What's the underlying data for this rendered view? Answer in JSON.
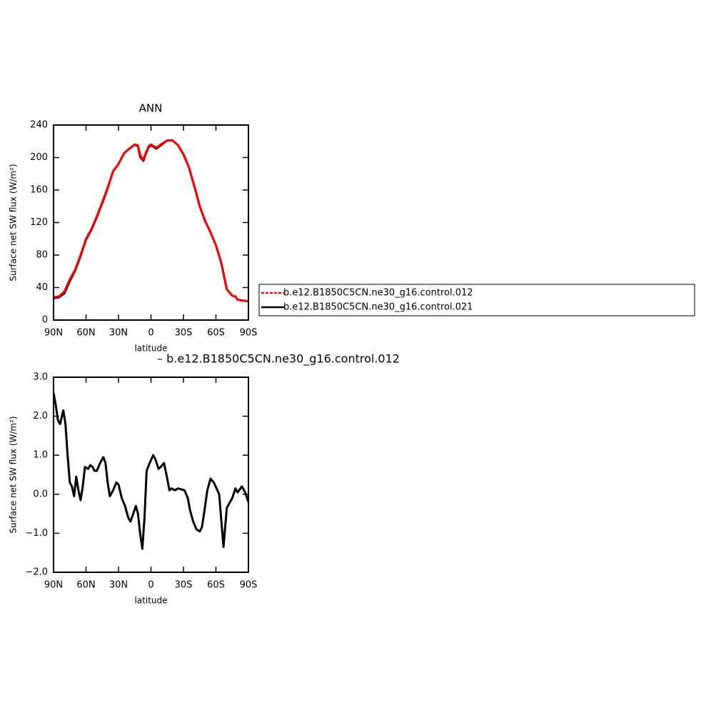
{
  "chart_data": [
    {
      "type": "line",
      "title": "ANN",
      "xlabel": "latitude",
      "ylabel": "Surface net SW flux (W/m²)",
      "x": [
        90,
        85,
        80,
        75,
        70,
        65,
        60,
        55,
        50,
        45,
        40,
        35,
        30,
        25,
        20,
        15,
        12,
        10,
        7,
        5,
        2,
        0,
        -5,
        -10,
        -15,
        -20,
        -25,
        -30,
        -35,
        -40,
        -45,
        -50,
        -55,
        -60,
        -65,
        -70,
        -75,
        -78,
        -80,
        -85,
        -90
      ],
      "series": [
        {
          "name": "b.e12.B1850C5CN.ne30_g16.control.012",
          "color": "#ff0000",
          "dashed": true,
          "values": [
            28,
            29,
            35,
            50,
            62,
            80,
            100,
            112,
            128,
            145,
            163,
            183,
            192,
            205,
            211,
            216,
            215,
            203,
            197,
            205,
            214,
            216,
            212,
            217,
            221,
            221,
            215,
            204,
            188,
            165,
            140,
            122,
            108,
            92,
            70,
            38,
            30,
            29,
            25,
            24,
            23
          ]
        },
        {
          "name": "b.e12.B1850C5CN.ne30_g16.control.021",
          "color": "#000000",
          "dashed": false,
          "values": [
            27,
            28,
            33,
            48,
            61,
            79,
            99,
            111,
            127,
            144,
            162,
            183,
            192,
            205,
            211,
            216,
            214,
            201,
            196,
            204,
            213,
            215,
            211,
            216,
            221,
            221,
            215,
            204,
            188,
            165,
            140,
            122,
            108,
            92,
            70,
            38,
            30,
            29,
            25,
            24,
            23
          ]
        }
      ],
      "xlim": [
        90,
        -90
      ],
      "xticks": [
        {
          "value": 90,
          "label": "90N"
        },
        {
          "value": 60,
          "label": "60N"
        },
        {
          "value": 30,
          "label": "30N"
        },
        0,
        {
          "value": -30,
          "label": "30S"
        },
        {
          "value": -60,
          "label": "60S"
        },
        {
          "value": -90,
          "label": "90S"
        }
      ],
      "ylim": [
        0,
        240
      ],
      "yticks": [
        0,
        40,
        80,
        120,
        160,
        200,
        240
      ],
      "legend": "right"
    },
    {
      "type": "line",
      "title": "– b.e12.B1850C5CN.ne30_g16.control.012",
      "xlabel": "latitude",
      "ylabel": "Surface net SW flux (W/m²)",
      "x": [
        90,
        88,
        86,
        84,
        81,
        79,
        77,
        75,
        73,
        71,
        69,
        67,
        65,
        63,
        61,
        58,
        56,
        54,
        52,
        50,
        47,
        44,
        42,
        40,
        38,
        35,
        32,
        30,
        27,
        24,
        21,
        19,
        17,
        14,
        12,
        10,
        8,
        6,
        4,
        2,
        -2,
        -4,
        -7,
        -9,
        -12,
        -15,
        -17,
        -19,
        -22,
        -25,
        -31,
        -34,
        -36,
        -39,
        -42,
        -45,
        -47,
        -49,
        -52,
        -55,
        -58,
        -63,
        -67,
        -70,
        -75,
        -78,
        -80,
        -84,
        -87,
        -90
      ],
      "color": "#000000",
      "values": [
        2.6,
        2.3,
        1.9,
        1.8,
        2.15,
        1.8,
        1.0,
        0.3,
        0.2,
        -0.05,
        0.45,
        0.1,
        -0.15,
        0.2,
        0.7,
        0.65,
        0.75,
        0.7,
        0.6,
        0.6,
        0.8,
        0.95,
        0.8,
        0.3,
        -0.05,
        0.1,
        0.3,
        0.25,
        -0.1,
        -0.3,
        -0.6,
        -0.7,
        -0.55,
        -0.3,
        -0.5,
        -1.0,
        -1.4,
        -0.6,
        0.6,
        0.75,
        1.0,
        0.9,
        0.65,
        0.7,
        0.8,
        0.4,
        0.1,
        0.15,
        0.1,
        0.15,
        0.1,
        -0.1,
        -0.4,
        -0.7,
        -0.9,
        -0.95,
        -0.85,
        -0.5,
        0.1,
        0.4,
        0.3,
        0.0,
        -1.35,
        -0.35,
        -0.1,
        0.15,
        0.05,
        0.2,
        0.05,
        -0.2
      ],
      "xlim": [
        90,
        -90
      ],
      "xticks": [
        {
          "value": 90,
          "label": "90N"
        },
        {
          "value": 60,
          "label": "60N"
        },
        {
          "value": 30,
          "label": "30N"
        },
        0,
        {
          "value": -30,
          "label": "30S"
        },
        {
          "value": -60,
          "label": "60S"
        },
        {
          "value": -90,
          "label": "90S"
        }
      ],
      "ylim": [
        -2,
        3
      ],
      "yticks": [
        {
          "value": -2,
          "label": "−2.0"
        },
        {
          "value": -1,
          "label": "−1.0"
        },
        {
          "value": 0,
          "label": "0.0"
        },
        {
          "value": 1,
          "label": "1.0"
        },
        {
          "value": 2,
          "label": "2.0"
        },
        {
          "value": 3,
          "label": "3.0"
        }
      ]
    }
  ]
}
